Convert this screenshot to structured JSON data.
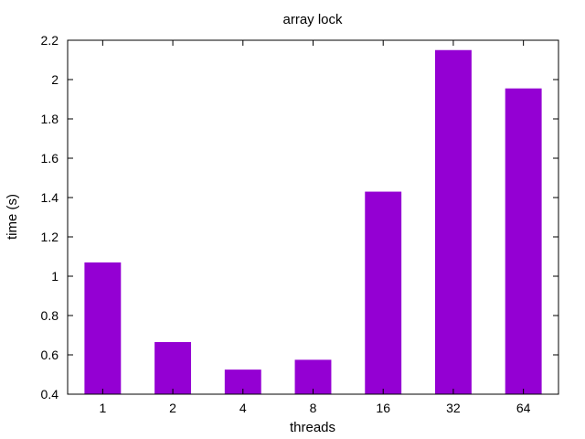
{
  "chart_data": {
    "type": "bar",
    "title": "array lock",
    "xlabel": "threads",
    "ylabel": "time (s)",
    "categories": [
      "1",
      "2",
      "4",
      "8",
      "16",
      "32",
      "64"
    ],
    "values": [
      1.07,
      0.665,
      0.525,
      0.575,
      1.43,
      2.15,
      1.955
    ],
    "ylim": [
      0.4,
      2.2
    ],
    "yticks": [
      0.4,
      0.6,
      0.8,
      1.0,
      1.2,
      1.4,
      1.6,
      1.8,
      2.0,
      2.2
    ],
    "ytick_labels": [
      "0.4",
      "0.6",
      "0.8",
      "1",
      "1.2",
      "1.4",
      "1.6",
      "1.8",
      "2",
      "2.2"
    ],
    "grid": false,
    "legend": "none",
    "bar_color": "#9400d3"
  }
}
